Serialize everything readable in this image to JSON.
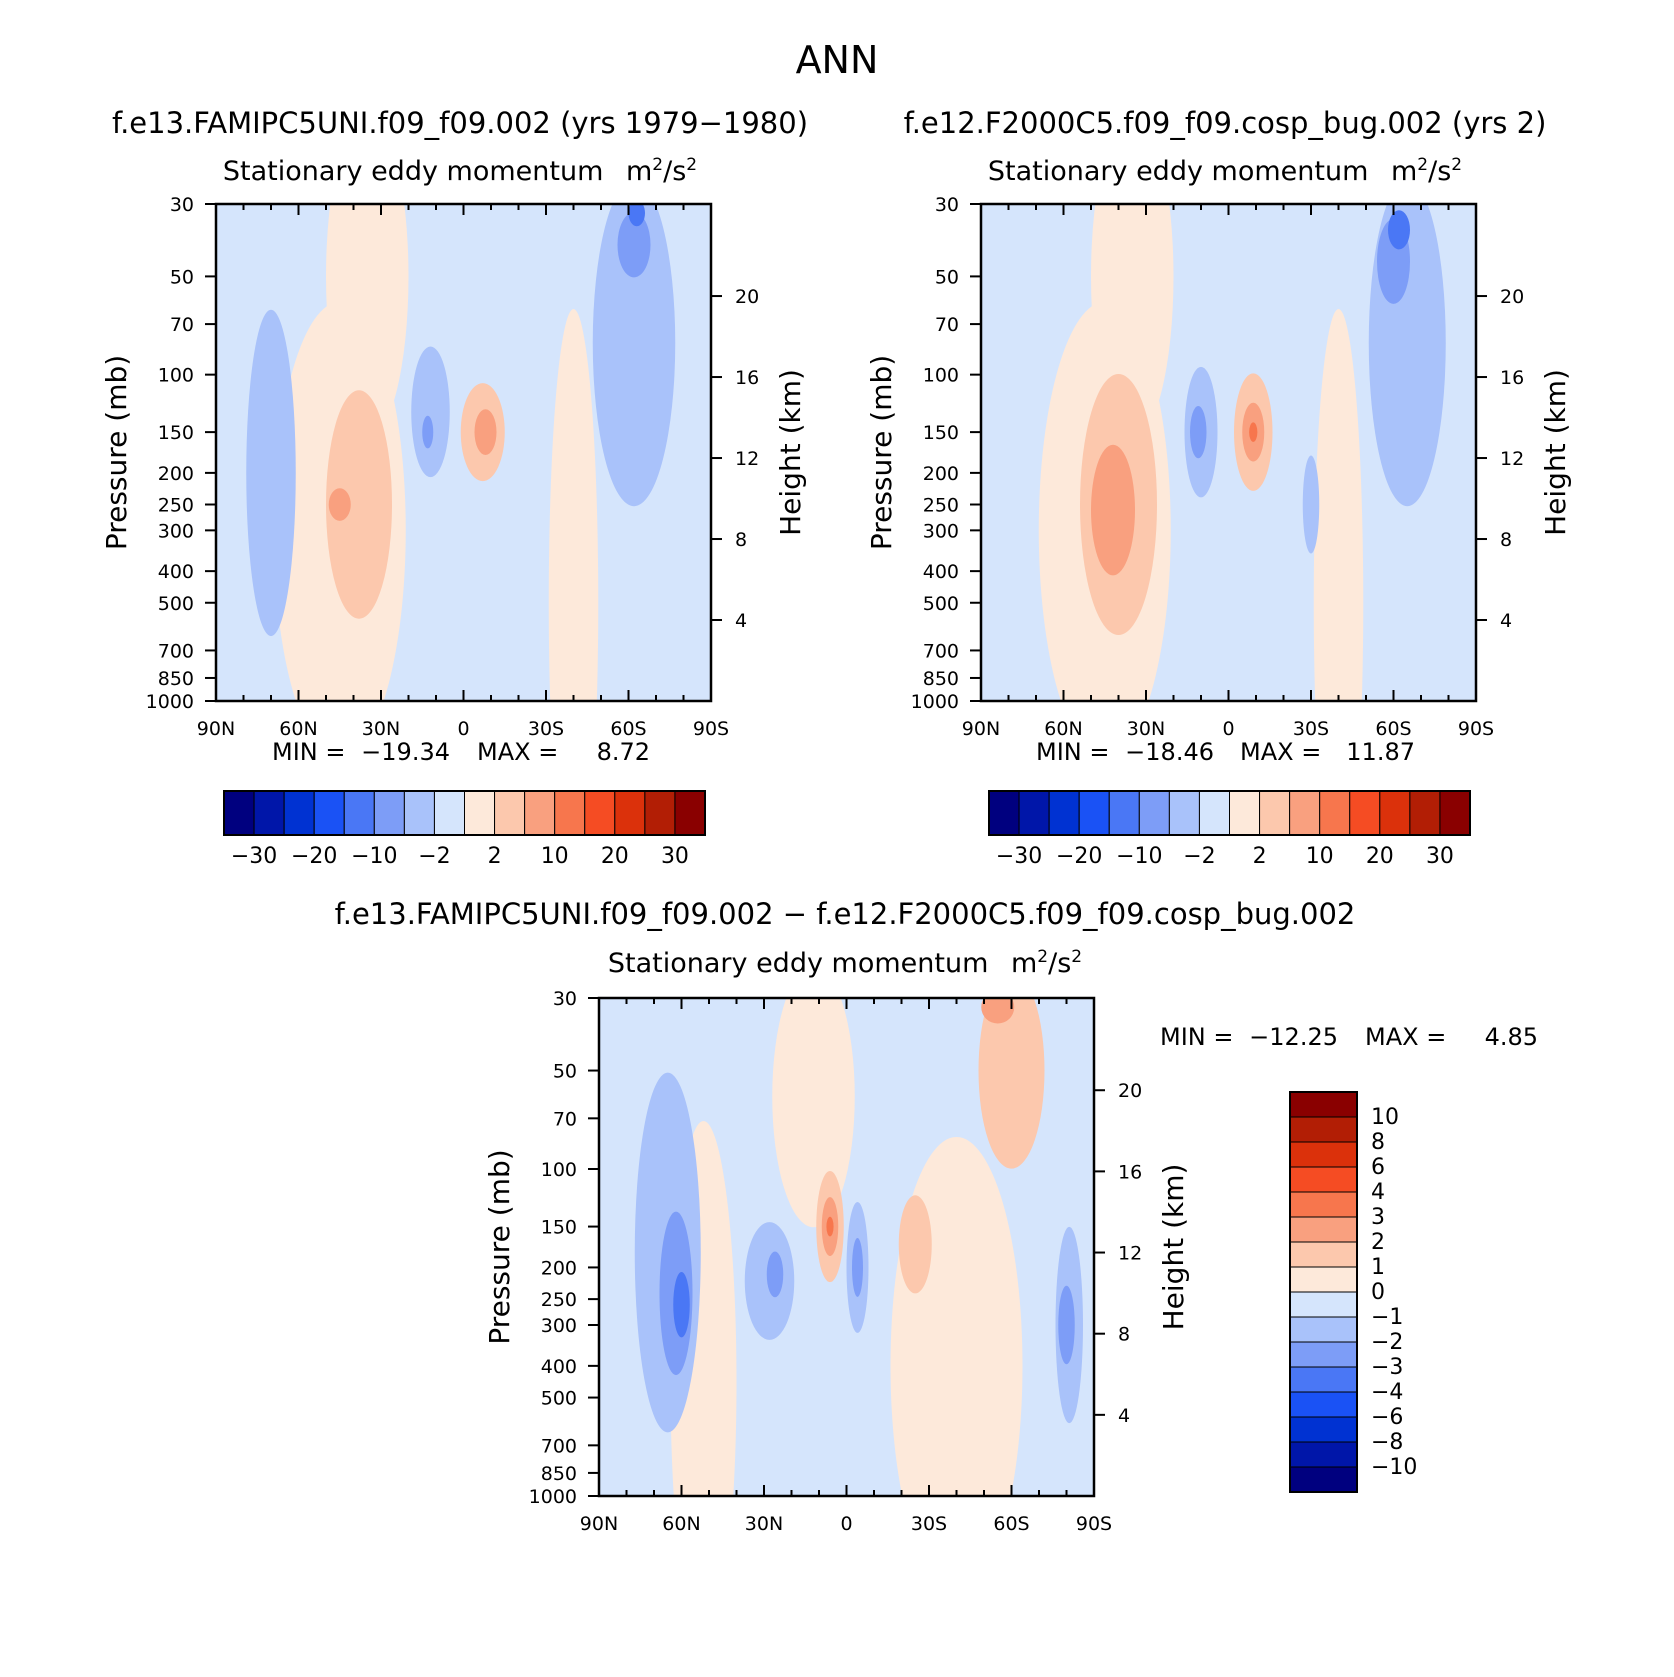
{
  "figure": {
    "title": "ANN"
  },
  "panels": [
    {
      "id": "left",
      "case_title": "f.e13.FAMIPC5UNI.f09_f09.002 (yrs 1979−1980)",
      "variable": "Stationary eddy momentum",
      "units_base": "m",
      "units_sup1": "2",
      "units_mid": "/s",
      "units_sup2": "2",
      "min_label": "MIN =",
      "min_value": "−19.34",
      "max_label": "MAX =",
      "max_value": "8.72"
    },
    {
      "id": "right",
      "case_title": "f.e12.F2000C5.f09_f09.cosp_bug.002 (yrs 2)",
      "variable": "Stationary eddy momentum",
      "units_base": "m",
      "units_sup1": "2",
      "units_mid": "/s",
      "units_sup2": "2",
      "min_label": "MIN =",
      "min_value": "−18.46",
      "max_label": "MAX =",
      "max_value": "11.87"
    },
    {
      "id": "diff",
      "case_title": "f.e13.FAMIPC5UNI.f09_f09.002 − f.e12.F2000C5.f09_f09.cosp_bug.002",
      "variable": "Stationary eddy momentum",
      "units_base": "m",
      "units_sup1": "2",
      "units_mid": "/s",
      "units_sup2": "2",
      "min_label": "MIN =",
      "min_value": "−12.25",
      "max_label": "MAX =",
      "max_value": "4.85"
    }
  ],
  "chart_data": [
    {
      "type": "heatmap",
      "panel": "left",
      "title": "Stationary eddy momentum",
      "xlabel": "",
      "ylabel": "Pressure (mb)",
      "ylabel_right": "Height (km)",
      "x_ticks": [
        "90N",
        "60N",
        "30N",
        "0",
        "30S",
        "60S",
        "90S"
      ],
      "x_tick_values": [
        90,
        60,
        30,
        0,
        -30,
        -60,
        -90
      ],
      "y_ticks": [
        "30",
        "50",
        "70",
        "100",
        "150",
        "200",
        "250",
        "300",
        "400",
        "500",
        "700",
        "850",
        "1000"
      ],
      "y_tick_values": [
        30,
        50,
        70,
        100,
        150,
        200,
        250,
        300,
        400,
        500,
        700,
        850,
        1000
      ],
      "y_right_ticks": [
        "20",
        "16",
        "12",
        "8",
        "4"
      ],
      "y_right_tick_values": [
        20,
        16,
        12,
        8,
        4
      ],
      "xlim": [
        90,
        -90
      ],
      "ylim": [
        1000,
        30
      ],
      "y_scale": "log",
      "min": -19.34,
      "max": 8.72,
      "colorbar_orientation": "horizontal",
      "colorbar_labels": [
        "−30",
        "−20",
        "−10",
        "−2",
        "2",
        "10",
        "20",
        "30"
      ],
      "colorbar_colors": [
        "#00007f",
        "#0016a9",
        "#0032d2",
        "#1a52f5",
        "#4a77f5",
        "#7d9df7",
        "#a9c2fa",
        "#d5e5fc",
        "#fde9da",
        "#fcc8ad",
        "#f9a07f",
        "#f7764d",
        "#f54c23",
        "#db310b",
        "#b21e05",
        "#8a0000"
      ],
      "features": [
        {
          "kind": "neg",
          "level": 2,
          "lat": 70,
          "p": 200,
          "dlat": 9,
          "dlog": 0.5
        },
        {
          "kind": "pos",
          "level": 2,
          "lat": 38,
          "p": 250,
          "dlat": 12,
          "dlog": 0.35
        },
        {
          "kind": "pos",
          "level": 3,
          "lat": 45,
          "p": 250,
          "dlat": 4,
          "dlog": 0.05
        },
        {
          "kind": "neg",
          "level": 2,
          "lat": 12,
          "p": 130,
          "dlat": 7,
          "dlog": 0.2
        },
        {
          "kind": "neg",
          "level": 3,
          "lat": 13,
          "p": 150,
          "dlat": 2,
          "dlog": 0.05
        },
        {
          "kind": "pos",
          "level": 2,
          "lat": -7,
          "p": 150,
          "dlat": 8,
          "dlog": 0.15
        },
        {
          "kind": "pos",
          "level": 3,
          "lat": -8,
          "p": 150,
          "dlat": 4,
          "dlog": 0.07
        },
        {
          "kind": "neg",
          "level": 2,
          "lat": -62,
          "p": 80,
          "dlat": 15,
          "dlog": 0.5
        },
        {
          "kind": "neg",
          "level": 3,
          "lat": -62,
          "p": 40,
          "dlat": 6,
          "dlog": 0.1
        },
        {
          "kind": "neg",
          "level": 4,
          "lat": -63,
          "p": 32,
          "dlat": 3,
          "dlog": 0.04
        }
      ]
    },
    {
      "type": "heatmap",
      "panel": "right",
      "title": "Stationary eddy momentum",
      "xlabel": "",
      "ylabel": "Pressure (mb)",
      "ylabel_right": "Height (km)",
      "x_ticks": [
        "90N",
        "60N",
        "30N",
        "0",
        "30S",
        "60S",
        "90S"
      ],
      "x_tick_values": [
        90,
        60,
        30,
        0,
        -30,
        -60,
        -90
      ],
      "y_ticks": [
        "30",
        "50",
        "70",
        "100",
        "150",
        "200",
        "250",
        "300",
        "400",
        "500",
        "700",
        "850",
        "1000"
      ],
      "y_tick_values": [
        30,
        50,
        70,
        100,
        150,
        200,
        250,
        300,
        400,
        500,
        700,
        850,
        1000
      ],
      "y_right_ticks": [
        "20",
        "16",
        "12",
        "8",
        "4"
      ],
      "y_right_tick_values": [
        20,
        16,
        12,
        8,
        4
      ],
      "xlim": [
        90,
        -90
      ],
      "ylim": [
        1000,
        30
      ],
      "y_scale": "log",
      "min": -18.46,
      "max": 11.87,
      "colorbar_orientation": "horizontal",
      "colorbar_labels": [
        "−30",
        "−20",
        "−10",
        "−2",
        "2",
        "10",
        "20",
        "30"
      ],
      "colorbar_colors": [
        "#00007f",
        "#0016a9",
        "#0032d2",
        "#1a52f5",
        "#4a77f5",
        "#7d9df7",
        "#a9c2fa",
        "#d5e5fc",
        "#fde9da",
        "#fcc8ad",
        "#f9a07f",
        "#f7764d",
        "#f54c23",
        "#db310b",
        "#b21e05",
        "#8a0000"
      ],
      "features": [
        {
          "kind": "pos",
          "level": 2,
          "lat": 40,
          "p": 250,
          "dlat": 14,
          "dlog": 0.4
        },
        {
          "kind": "pos",
          "level": 3,
          "lat": 42,
          "p": 260,
          "dlat": 8,
          "dlog": 0.2
        },
        {
          "kind": "neg",
          "level": 2,
          "lat": 10,
          "p": 150,
          "dlat": 6,
          "dlog": 0.2
        },
        {
          "kind": "neg",
          "level": 3,
          "lat": 11,
          "p": 150,
          "dlat": 3,
          "dlog": 0.08
        },
        {
          "kind": "pos",
          "level": 2,
          "lat": -9,
          "p": 150,
          "dlat": 7,
          "dlog": 0.18
        },
        {
          "kind": "pos",
          "level": 3,
          "lat": -9,
          "p": 150,
          "dlat": 4,
          "dlog": 0.09
        },
        {
          "kind": "pos",
          "level": 4,
          "lat": -9,
          "p": 150,
          "dlat": 1.5,
          "dlog": 0.03
        },
        {
          "kind": "neg",
          "level": 2,
          "lat": -65,
          "p": 80,
          "dlat": 14,
          "dlog": 0.5
        },
        {
          "kind": "neg",
          "level": 3,
          "lat": -60,
          "p": 45,
          "dlat": 6,
          "dlog": 0.13
        },
        {
          "kind": "neg",
          "level": 4,
          "lat": -62,
          "p": 36,
          "dlat": 4,
          "dlog": 0.06
        },
        {
          "kind": "neg",
          "level": 2,
          "lat": -30,
          "p": 250,
          "dlat": 3,
          "dlog": 0.15
        }
      ]
    },
    {
      "type": "heatmap",
      "panel": "diff",
      "title": "Stationary eddy momentum",
      "xlabel": "",
      "ylabel": "Pressure (mb)",
      "ylabel_right": "Height (km)",
      "x_ticks": [
        "90N",
        "60N",
        "30N",
        "0",
        "30S",
        "60S",
        "90S"
      ],
      "x_tick_values": [
        90,
        60,
        30,
        0,
        -30,
        -60,
        -90
      ],
      "y_ticks": [
        "30",
        "50",
        "70",
        "100",
        "150",
        "200",
        "250",
        "300",
        "400",
        "500",
        "700",
        "850",
        "1000"
      ],
      "y_tick_values": [
        30,
        50,
        70,
        100,
        150,
        200,
        250,
        300,
        400,
        500,
        700,
        850,
        1000
      ],
      "y_right_ticks": [
        "20",
        "16",
        "12",
        "8",
        "4"
      ],
      "y_right_tick_values": [
        20,
        16,
        12,
        8,
        4
      ],
      "xlim": [
        90,
        -90
      ],
      "ylim": [
        1000,
        30
      ],
      "y_scale": "log",
      "min": -12.25,
      "max": 4.85,
      "colorbar_orientation": "vertical",
      "colorbar_labels": [
        "10",
        "8",
        "6",
        "4",
        "3",
        "2",
        "1",
        "0",
        "−1",
        "−2",
        "−3",
        "−4",
        "−6",
        "−8",
        "−10"
      ],
      "colorbar_colors": [
        "#8a0000",
        "#b21e05",
        "#db310b",
        "#f54c23",
        "#f7764d",
        "#f9a07f",
        "#fcc8ad",
        "#fde9da",
        "#d5e5fc",
        "#a9c2fa",
        "#7d9df7",
        "#4a77f5",
        "#1a52f5",
        "#0032d2",
        "#0016a9",
        "#00007f"
      ],
      "features": [
        {
          "kind": "neg",
          "level": 2,
          "lat": 65,
          "p": 180,
          "dlat": 12,
          "dlog": 0.55
        },
        {
          "kind": "neg",
          "level": 3,
          "lat": 62,
          "p": 240,
          "dlat": 6,
          "dlog": 0.25
        },
        {
          "kind": "neg",
          "level": 4,
          "lat": 60,
          "p": 260,
          "dlat": 3,
          "dlog": 0.1
        },
        {
          "kind": "neg",
          "level": 2,
          "lat": 28,
          "p": 220,
          "dlat": 9,
          "dlog": 0.18
        },
        {
          "kind": "neg",
          "level": 3,
          "lat": 26,
          "p": 210,
          "dlat": 3,
          "dlog": 0.07
        },
        {
          "kind": "pos",
          "level": 2,
          "lat": 6,
          "p": 150,
          "dlat": 5,
          "dlog": 0.17
        },
        {
          "kind": "pos",
          "level": 3,
          "lat": 6,
          "p": 150,
          "dlat": 3,
          "dlog": 0.09
        },
        {
          "kind": "pos",
          "level": 4,
          "lat": 6,
          "p": 150,
          "dlat": 1.3,
          "dlog": 0.03
        },
        {
          "kind": "neg",
          "level": 2,
          "lat": -4,
          "p": 200,
          "dlat": 4,
          "dlog": 0.2
        },
        {
          "kind": "neg",
          "level": 3,
          "lat": -4,
          "p": 200,
          "dlat": 2,
          "dlog": 0.09
        },
        {
          "kind": "pos",
          "level": 2,
          "lat": -60,
          "p": 50,
          "dlat": 12,
          "dlog": 0.3
        },
        {
          "kind": "pos",
          "level": 3,
          "lat": -55,
          "p": 32,
          "dlat": 6,
          "dlog": 0.05
        },
        {
          "kind": "pos",
          "level": 2,
          "lat": -25,
          "p": 170,
          "dlat": 6,
          "dlog": 0.15
        },
        {
          "kind": "neg",
          "level": 2,
          "lat": -81,
          "p": 300,
          "dlat": 5,
          "dlog": 0.3
        },
        {
          "kind": "neg",
          "level": 3,
          "lat": -80,
          "p": 300,
          "dlat": 3,
          "dlog": 0.12
        }
      ]
    }
  ]
}
